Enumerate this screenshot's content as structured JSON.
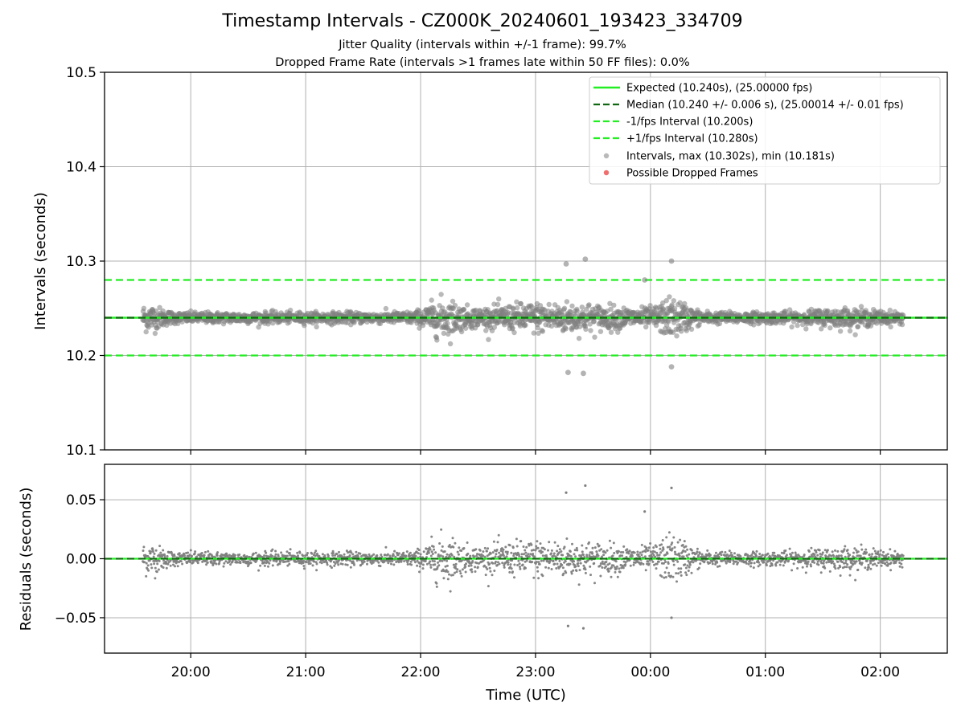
{
  "figure": {
    "title": "Timestamp Intervals - CZ000K_20240601_193423_334709",
    "subtitle1": "Jitter Quality (intervals within +/-1 frame): 99.7%",
    "subtitle2": "Dropped Frame Rate (intervals >1 frames late within 50 FF files): 0.0%"
  },
  "colors": {
    "expected": "#22ee22",
    "median": "#116611",
    "interval": "#22ee22",
    "points": "#808080",
    "dropped": "#ee5555",
    "grid": "#b0b0b0"
  },
  "chart_data": [
    {
      "type": "scatter",
      "ylabel": "Intervals (seconds)",
      "ylim": [
        10.1,
        10.5
      ],
      "yticks": [
        10.1,
        10.2,
        10.3,
        10.4,
        10.5
      ],
      "ytick_labels": [
        "10.1",
        "10.2",
        "10.3",
        "10.4",
        "10.5"
      ],
      "xlim": [
        "19:15",
        "02:35"
      ],
      "grid": true,
      "legend_position": "top-right",
      "reference_lines": [
        {
          "name": "Expected (10.240s), (25.00000 fps)",
          "y": 10.24,
          "style": "solid"
        },
        {
          "name": "Median (10.240 +/- 0.006 s), (25.00014 +/- 0.01 fps)",
          "y": 10.24,
          "style": "dashed"
        },
        {
          "name": "-1/fps Interval (10.200s)",
          "y": 10.2,
          "style": "dashed"
        },
        {
          "name": "+1/fps Interval (10.280s)",
          "y": 10.28,
          "style": "dashed"
        }
      ],
      "series": [
        {
          "name": "Intervals, max (10.302s), min (10.181s)",
          "max": 10.302,
          "min": 10.181,
          "center": 10.24,
          "time_range": [
            "19:35",
            "02:12"
          ]
        },
        {
          "name": "Possible Dropped Frames",
          "count": 0
        }
      ],
      "outliers": [
        {
          "x": "23:16",
          "y": 10.297
        },
        {
          "x": "23:26",
          "y": 10.302
        },
        {
          "x": "00:11",
          "y": 10.3
        },
        {
          "x": "23:57",
          "y": 10.28
        },
        {
          "x": "23:17",
          "y": 10.182
        },
        {
          "x": "23:25",
          "y": 10.181
        },
        {
          "x": "00:11",
          "y": 10.188
        }
      ]
    },
    {
      "type": "scatter",
      "xlabel": "Time (UTC)",
      "ylabel": "Residuals (seconds)",
      "ylim": [
        -0.08,
        0.08
      ],
      "yticks": [
        -0.05,
        0.0,
        0.05
      ],
      "ytick_labels": [
        "−0.05",
        "0.00",
        "0.05"
      ],
      "xticks": [
        "20:00",
        "21:00",
        "22:00",
        "23:00",
        "00:00",
        "01:00",
        "02:00"
      ],
      "xlim": [
        "19:15",
        "02:35"
      ],
      "grid": true,
      "series": [
        {
          "name": "Residuals",
          "max": 0.062,
          "min": -0.059,
          "center": 0.0
        }
      ],
      "outliers": [
        {
          "x": "23:16",
          "y": 0.056
        },
        {
          "x": "23:26",
          "y": 0.062
        },
        {
          "x": "00:11",
          "y": 0.06
        },
        {
          "x": "23:57",
          "y": 0.04
        },
        {
          "x": "23:17",
          "y": -0.057
        },
        {
          "x": "23:25",
          "y": -0.059
        },
        {
          "x": "00:11",
          "y": -0.05
        }
      ]
    }
  ]
}
